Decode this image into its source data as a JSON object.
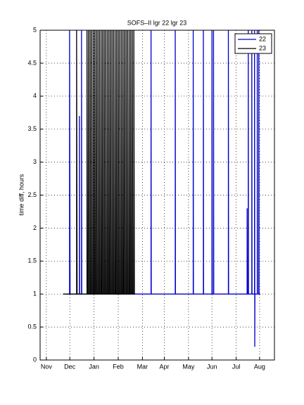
{
  "chart_data": {
    "type": "line",
    "title": "SOFS–II lgr 22 lgr 23",
    "y_label": "time diff, hours",
    "xlim": [
      -8,
      292
    ],
    "ylim": [
      0,
      5
    ],
    "xticks": [
      {
        "value": 0,
        "label": "Nov"
      },
      {
        "value": 30,
        "label": "Dec"
      },
      {
        "value": 61,
        "label": "Jan"
      },
      {
        "value": 92,
        "label": "Feb"
      },
      {
        "value": 123,
        "label": "Mar"
      },
      {
        "value": 151,
        "label": "Apr"
      },
      {
        "value": 182,
        "label": "May"
      },
      {
        "value": 212,
        "label": "Jun"
      },
      {
        "value": 243,
        "label": "Jul"
      },
      {
        "value": 273,
        "label": "Aug"
      }
    ],
    "yticks": [
      0,
      0.5,
      1,
      1.5,
      2,
      2.5,
      3,
      3.5,
      4,
      4.5,
      5
    ],
    "grid": true,
    "legend": "upper-right",
    "series": [
      {
        "name": "22",
        "color": "#0000cc",
        "x": [
          25,
          29.7,
          29.7,
          30.4,
          42.3,
          42.3,
          42.6,
          45,
          45,
          45.3,
          134,
          134,
          134.3,
          165,
          165,
          165.3,
          188,
          188,
          188.3,
          201,
          201,
          201.3,
          212,
          212,
          212.3,
          214,
          214,
          214.3,
          233,
          233,
          233.3,
          257,
          257,
          257.3,
          258.5,
          258.5,
          258.8,
          263,
          263,
          263.3,
          266.5,
          266.5,
          266.8,
          266.8,
          267,
          270,
          270,
          270.3,
          272,
          272,
          272.3,
          274
        ],
        "values": [
          1,
          1,
          5,
          1,
          1,
          3.7,
          1,
          1,
          5,
          1,
          1,
          5,
          1,
          1,
          5,
          1,
          1,
          5,
          1,
          1,
          5,
          1,
          1,
          5,
          1,
          1,
          5,
          1,
          1,
          5,
          1,
          1,
          2.3,
          1,
          1,
          5,
          1,
          1,
          5,
          1,
          1,
          5,
          0.8,
          0.2,
          1,
          1,
          5,
          1,
          1,
          5,
          1,
          1
        ]
      },
      {
        "name": "23",
        "color": "#000000",
        "x": [
          21.6,
          38.7,
          38.7,
          39.4,
          52,
          52,
          52.7,
          54,
          54,
          54.7,
          56,
          56,
          56.7,
          58,
          58,
          58.7,
          60,
          60,
          60.7,
          62,
          62,
          62.7,
          64,
          64,
          64.7,
          66,
          66,
          66.7,
          68,
          68,
          68.7,
          70,
          70,
          70.7,
          72,
          72,
          72.7,
          74,
          74,
          74.7,
          76,
          76,
          76.7,
          78,
          78,
          78.7,
          80,
          80,
          80.7,
          82,
          82,
          82.7,
          84,
          84,
          84.7,
          86,
          86,
          86.7,
          88,
          88,
          88.7,
          90,
          90,
          90.7,
          92,
          92,
          92.7,
          94,
          94,
          94.7,
          96,
          96,
          96.7,
          98,
          98,
          98.7,
          100,
          100,
          100.7,
          102,
          102,
          102.7,
          104,
          104,
          104.7,
          106,
          106,
          106.7,
          108,
          108,
          108.7,
          110,
          110,
          110.7,
          112,
          112,
          112.7,
          113.5
        ],
        "values": [
          1,
          1,
          5,
          1,
          1,
          5,
          1,
          1,
          5,
          1,
          1,
          5,
          1,
          1,
          5,
          1,
          1,
          5,
          1,
          1,
          5,
          1,
          1,
          5,
          1,
          1,
          5,
          1,
          1,
          5,
          1,
          1,
          5,
          1,
          1,
          5,
          1,
          1,
          5,
          1,
          1,
          5,
          1,
          1,
          5,
          1,
          1,
          5,
          1,
          1,
          5,
          1,
          1,
          5,
          1,
          1,
          5,
          1,
          1,
          5,
          1,
          1,
          5,
          1,
          1,
          5,
          1,
          1,
          5,
          1,
          1,
          5,
          1,
          1,
          5,
          1,
          1,
          5,
          1,
          1,
          5,
          1,
          1,
          5,
          1,
          1,
          5,
          1,
          1,
          5,
          1,
          1,
          5,
          1,
          1,
          5,
          1,
          1
        ]
      }
    ]
  }
}
